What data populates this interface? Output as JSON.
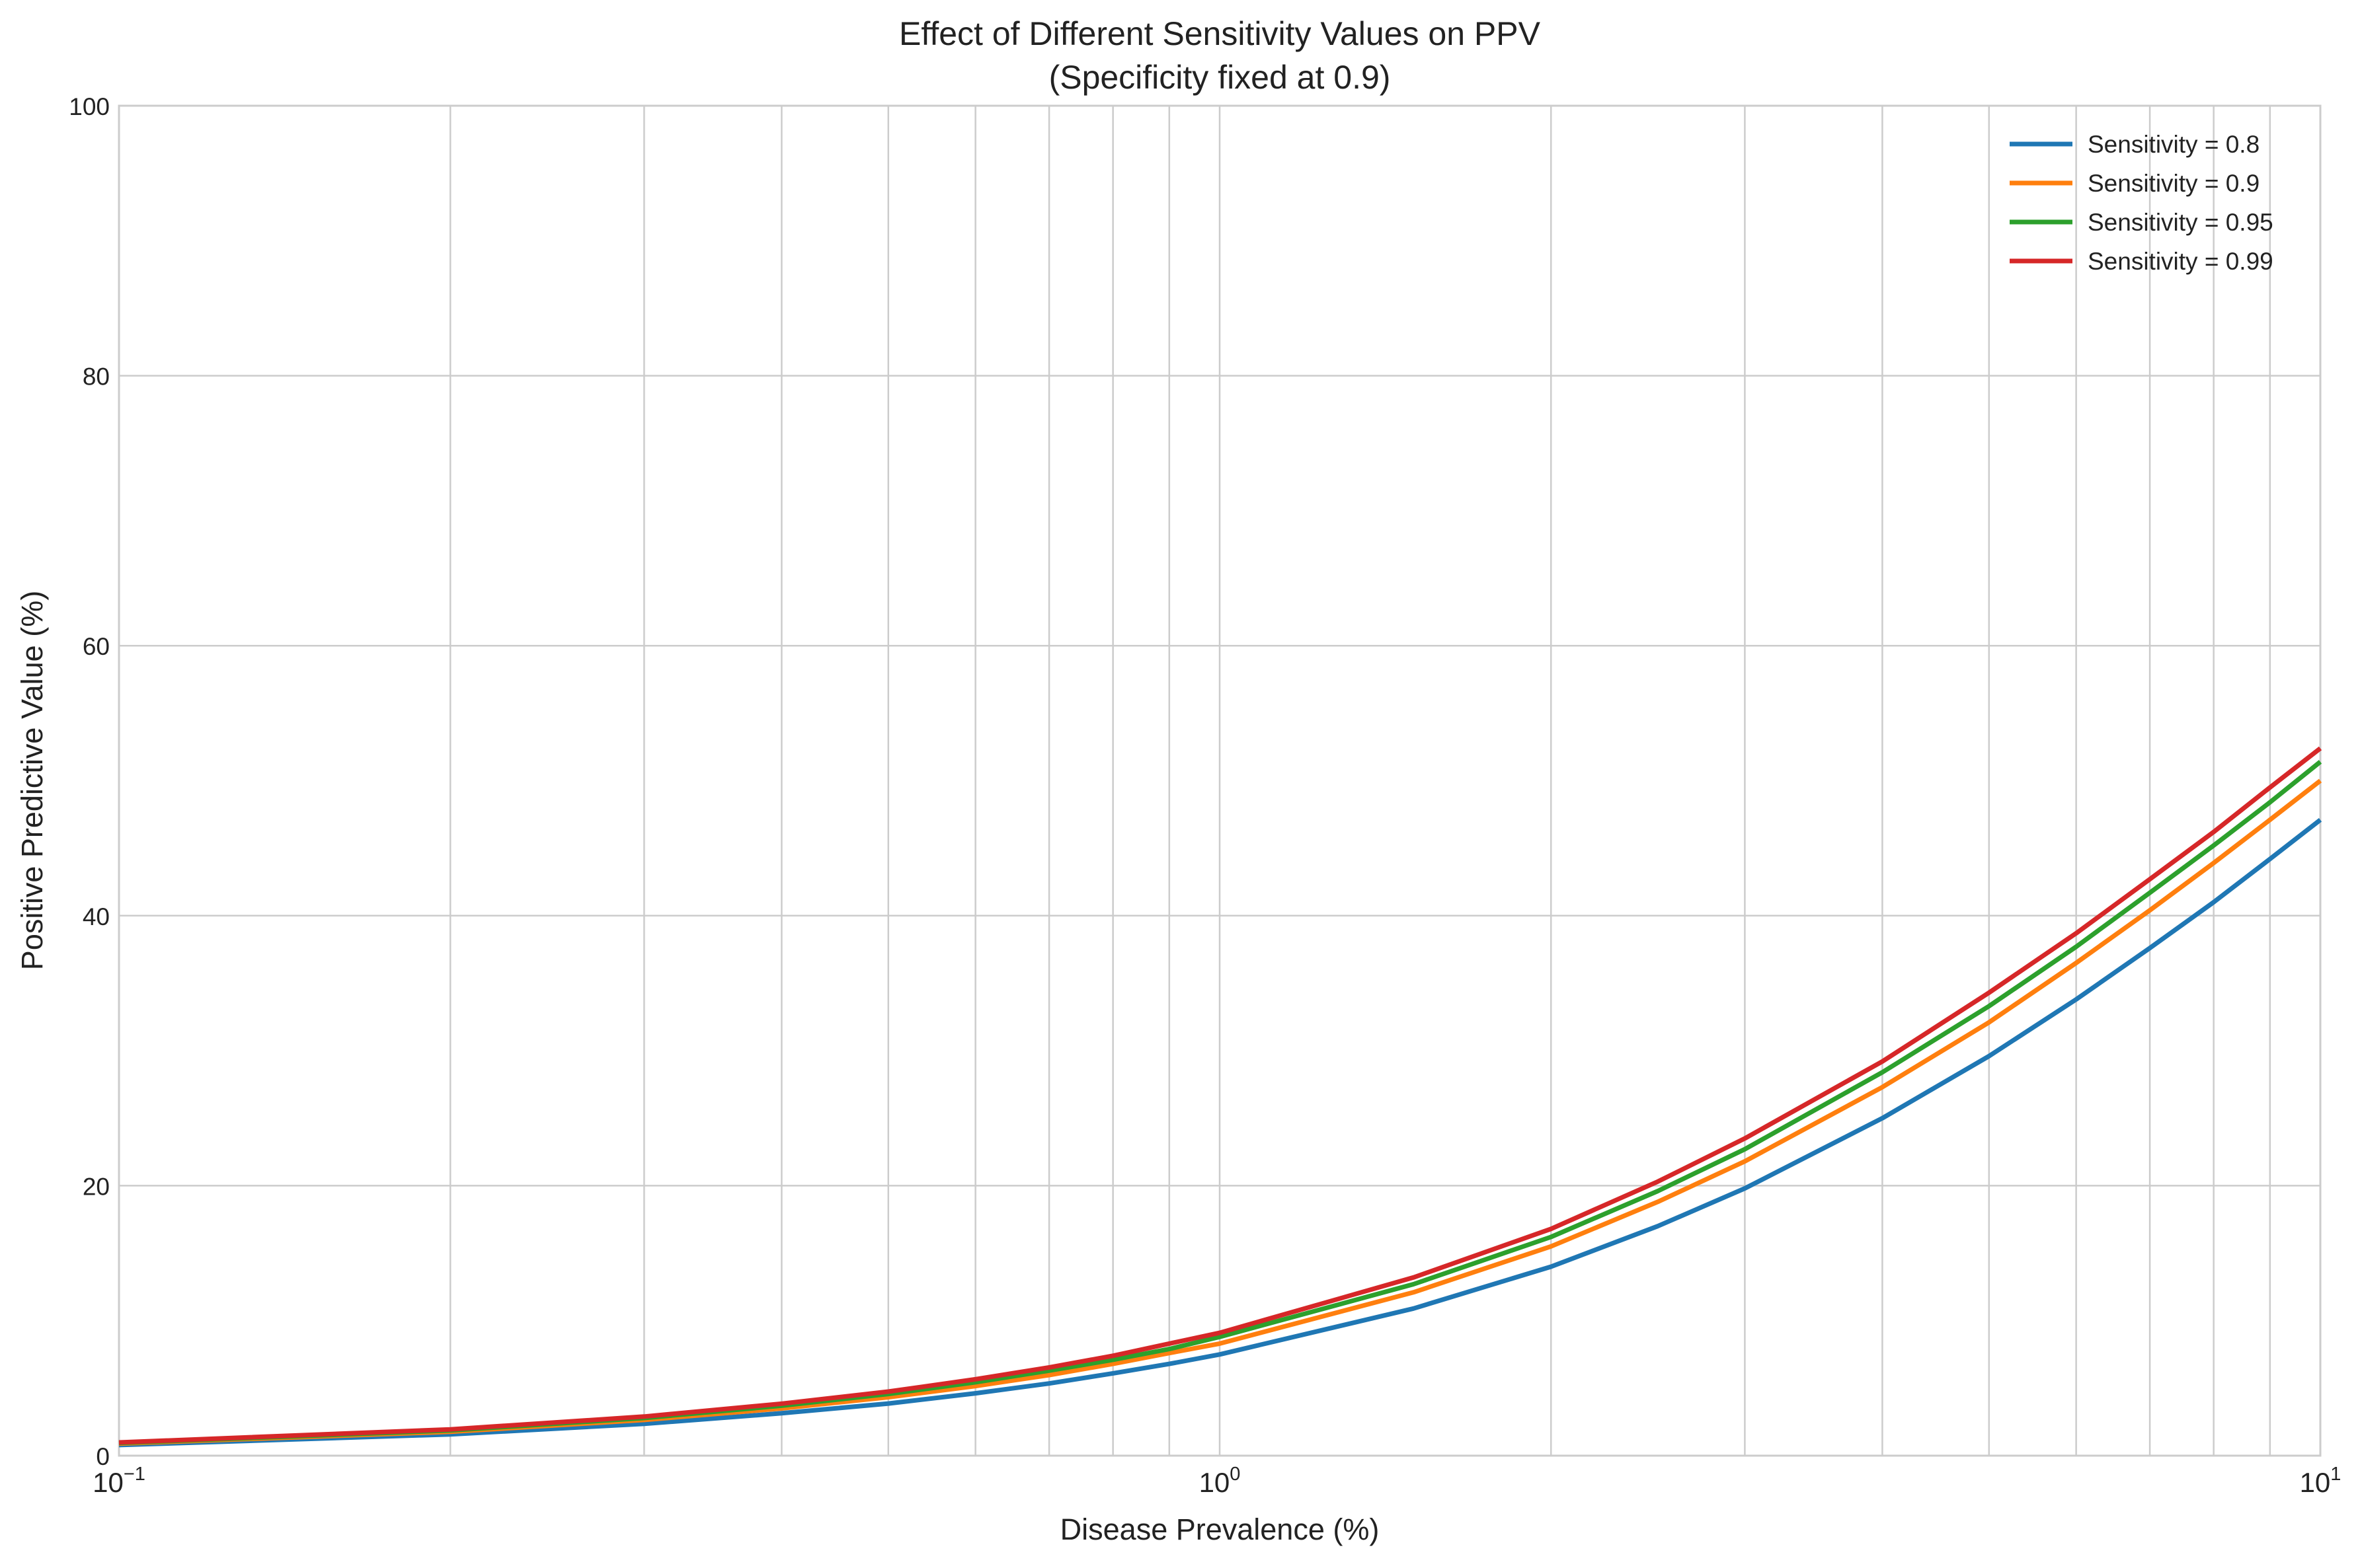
{
  "chart_data": {
    "type": "line",
    "title_line1": "Effect of Different Sensitivity Values on PPV",
    "title_line2": "(Specificity fixed at 0.9)",
    "xlabel": "Disease Prevalence (%)",
    "ylabel": "Positive Predictive Value (%)",
    "x_scale": "log",
    "xlim": [
      0.1,
      10
    ],
    "ylim": [
      0,
      100
    ],
    "grid": true,
    "legend_position": "top-right",
    "x_tick_labels": [
      {
        "value": 0.1,
        "base": "10",
        "exp": "−1"
      },
      {
        "value": 1,
        "base": "10",
        "exp": "0"
      },
      {
        "value": 10,
        "base": "10",
        "exp": "1"
      }
    ],
    "y_ticks": [
      0,
      20,
      40,
      60,
      80,
      100
    ],
    "x": [
      0.1,
      0.2,
      0.3,
      0.4,
      0.5,
      0.6,
      0.7,
      0.8,
      0.9,
      1,
      1.5,
      2,
      2.5,
      3,
      4,
      5,
      6,
      7,
      8,
      9,
      10
    ],
    "series": [
      {
        "name": "Sensitivity = 0.8",
        "color": "#1f77b4",
        "values": [
          0.79,
          1.58,
          2.36,
          3.14,
          3.86,
          4.62,
          5.35,
          6.1,
          6.8,
          7.5,
          10.9,
          14.0,
          17.0,
          19.8,
          25.0,
          29.6,
          33.8,
          37.6,
          41.0,
          44.2,
          47.1
        ]
      },
      {
        "name": "Sensitivity = 0.9",
        "color": "#ff7f0e",
        "values": [
          0.89,
          1.77,
          2.65,
          3.5,
          4.33,
          5.16,
          5.97,
          6.8,
          7.6,
          8.3,
          12.1,
          15.5,
          18.8,
          21.8,
          27.3,
          32.1,
          36.5,
          40.4,
          43.9,
          47.1,
          50.0
        ]
      },
      {
        "name": "Sensitivity = 0.95",
        "color": "#2ca02c",
        "values": [
          0.94,
          1.87,
          2.79,
          3.7,
          4.57,
          5.44,
          6.3,
          7.1,
          7.9,
          8.8,
          12.7,
          16.2,
          19.6,
          22.7,
          28.4,
          33.3,
          37.7,
          41.7,
          45.2,
          48.4,
          51.4
        ]
      },
      {
        "name": "Sensitivity = 0.99",
        "color": "#d62728",
        "values": [
          0.98,
          1.95,
          2.9,
          3.85,
          4.75,
          5.66,
          6.54,
          7.4,
          8.3,
          9.1,
          13.2,
          16.8,
          20.3,
          23.5,
          29.2,
          34.3,
          38.7,
          42.7,
          46.2,
          49.5,
          52.4
        ]
      }
    ]
  }
}
